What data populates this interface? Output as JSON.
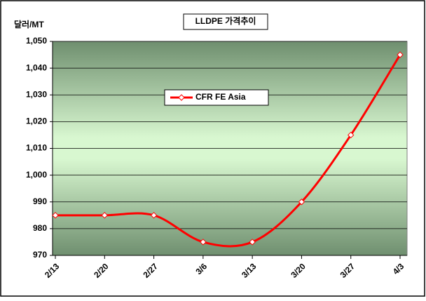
{
  "chart_data": {
    "type": "line",
    "title": "LLDPE 가격추이",
    "y_label": "달러/MT",
    "categories": [
      "2/13",
      "2/20",
      "2/27",
      "3/6",
      "3/13",
      "3/20",
      "3/27",
      "4/3"
    ],
    "series": [
      {
        "name": "CFR FE Asia",
        "color": "#ff0000",
        "values": [
          985,
          985,
          985,
          975,
          975,
          990,
          1015,
          1045
        ]
      }
    ],
    "ylim": [
      970,
      1050
    ],
    "yticks": [
      970,
      980,
      990,
      {
        "value": 1000,
        "label": "1,000"
      },
      {
        "value": 1010,
        "label": "1,010"
      },
      {
        "value": 1020,
        "label": "1,020"
      },
      {
        "value": 1030,
        "label": "1,030"
      },
      {
        "value": 1040,
        "label": "1,040"
      },
      {
        "value": 1050,
        "label": "1,050"
      }
    ],
    "grid": true
  }
}
